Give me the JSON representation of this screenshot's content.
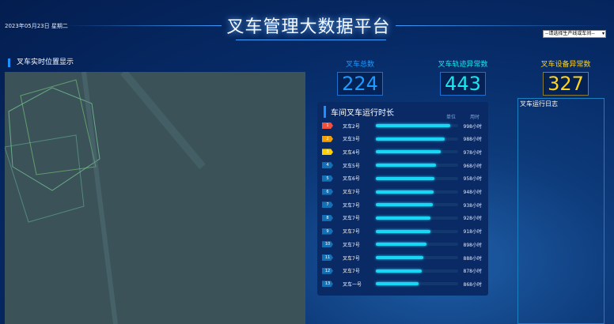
{
  "header": {
    "date": "2023年05月23日 星期二",
    "title": "叉车管理大数据平台",
    "select_value": "--请选择生产线或车间--"
  },
  "map": {
    "title": "叉车实时位置显示"
  },
  "stats": [
    {
      "label": "叉车总数",
      "value": "224",
      "color": "#1e9bff"
    },
    {
      "label": "叉车轨迹异常数",
      "value": "443",
      "color": "#19e6f0"
    },
    {
      "label": "叉车设备异常数",
      "value": "327",
      "color": "#ffd21e"
    }
  ],
  "runtime": {
    "title": "车间叉车运行时长",
    "col1": "单位",
    "col2": "用时",
    "rows": [
      {
        "rank": "1",
        "name": "叉车2号",
        "hours": "998小时",
        "pct": 90,
        "color": "#f0503c"
      },
      {
        "rank": "2",
        "name": "叉车3号",
        "hours": "988小时",
        "pct": 84,
        "color": "#f5a000"
      },
      {
        "rank": "3",
        "name": "叉车4号",
        "hours": "978小时",
        "pct": 79,
        "color": "#ffd000"
      },
      {
        "rank": "4",
        "name": "叉车5号",
        "hours": "968小时",
        "pct": 73,
        "color": "#1470b4"
      },
      {
        "rank": "5",
        "name": "叉车6号",
        "hours": "958小时",
        "pct": 71,
        "color": "#1470b4"
      },
      {
        "rank": "6",
        "name": "叉车7号",
        "hours": "948小时",
        "pct": 70,
        "color": "#1470b4"
      },
      {
        "rank": "7",
        "name": "叉车7号",
        "hours": "938小时",
        "pct": 69,
        "color": "#1470b4"
      },
      {
        "rank": "8",
        "name": "叉车7号",
        "hours": "928小时",
        "pct": 66,
        "color": "#1470b4"
      },
      {
        "rank": "9",
        "name": "叉车7号",
        "hours": "918小时",
        "pct": 66,
        "color": "#1470b4"
      },
      {
        "rank": "10",
        "name": "叉车7号",
        "hours": "898小时",
        "pct": 62,
        "color": "#1470b4"
      },
      {
        "rank": "11",
        "name": "叉车7号",
        "hours": "888小时",
        "pct": 58,
        "color": "#1470b4"
      },
      {
        "rank": "12",
        "name": "叉车7号",
        "hours": "878小时",
        "pct": 56,
        "color": "#1470b4"
      },
      {
        "rank": "13",
        "name": "叉车一号",
        "hours": "868小时",
        "pct": 52,
        "color": "#1470b4"
      }
    ]
  },
  "log": {
    "title": "叉车运行日志"
  }
}
